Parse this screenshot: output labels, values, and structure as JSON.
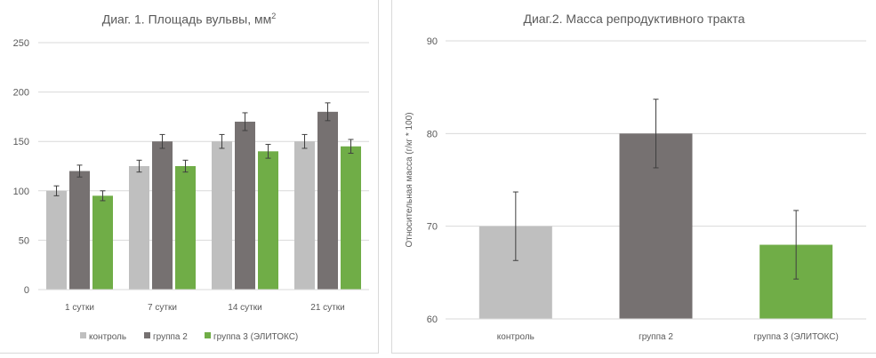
{
  "chart_data": [
    {
      "type": "bar",
      "title": "Диаг. 1. Площадь вульвы, мм",
      "title_superscript": "2",
      "categories": [
        "1 сутки",
        "7 сутки",
        "14 сутки",
        "21 сутки"
      ],
      "series": [
        {
          "name": "контроль",
          "color": "#bfbfbf",
          "values": [
            100,
            125,
            150,
            150
          ],
          "errors": [
            5,
            6,
            7,
            7
          ]
        },
        {
          "name": "группа 2",
          "color": "#767171",
          "values": [
            120,
            150,
            170,
            180
          ],
          "errors": [
            6,
            7,
            9,
            9
          ]
        },
        {
          "name": "группа 3 (ЭЛИТОКС)",
          "color": "#70ad47",
          "values": [
            95,
            125,
            140,
            145
          ],
          "errors": [
            5,
            6,
            7,
            7
          ]
        }
      ],
      "ylim": [
        0,
        250
      ],
      "yticks": [
        0,
        50,
        100,
        150,
        200,
        250
      ],
      "xlabel": "",
      "ylabel": "",
      "grid": true,
      "legend": "bottom"
    },
    {
      "type": "bar",
      "title": "Диаг.2. Масса репродуктивного тракта",
      "categories": [
        "контроль",
        "группа 2",
        "группа 3 (ЭЛИТОКС)"
      ],
      "values": [
        70,
        80,
        68
      ],
      "errors": [
        3.7,
        3.7,
        3.7
      ],
      "colors": [
        "#bfbfbf",
        "#767171",
        "#70ad47"
      ],
      "ylim": [
        60,
        90
      ],
      "yticks": [
        60,
        70,
        80,
        90
      ],
      "xlabel": "",
      "ylabel": "Относительная масса (г/кг * 100)",
      "grid": true,
      "legend": "none"
    }
  ]
}
